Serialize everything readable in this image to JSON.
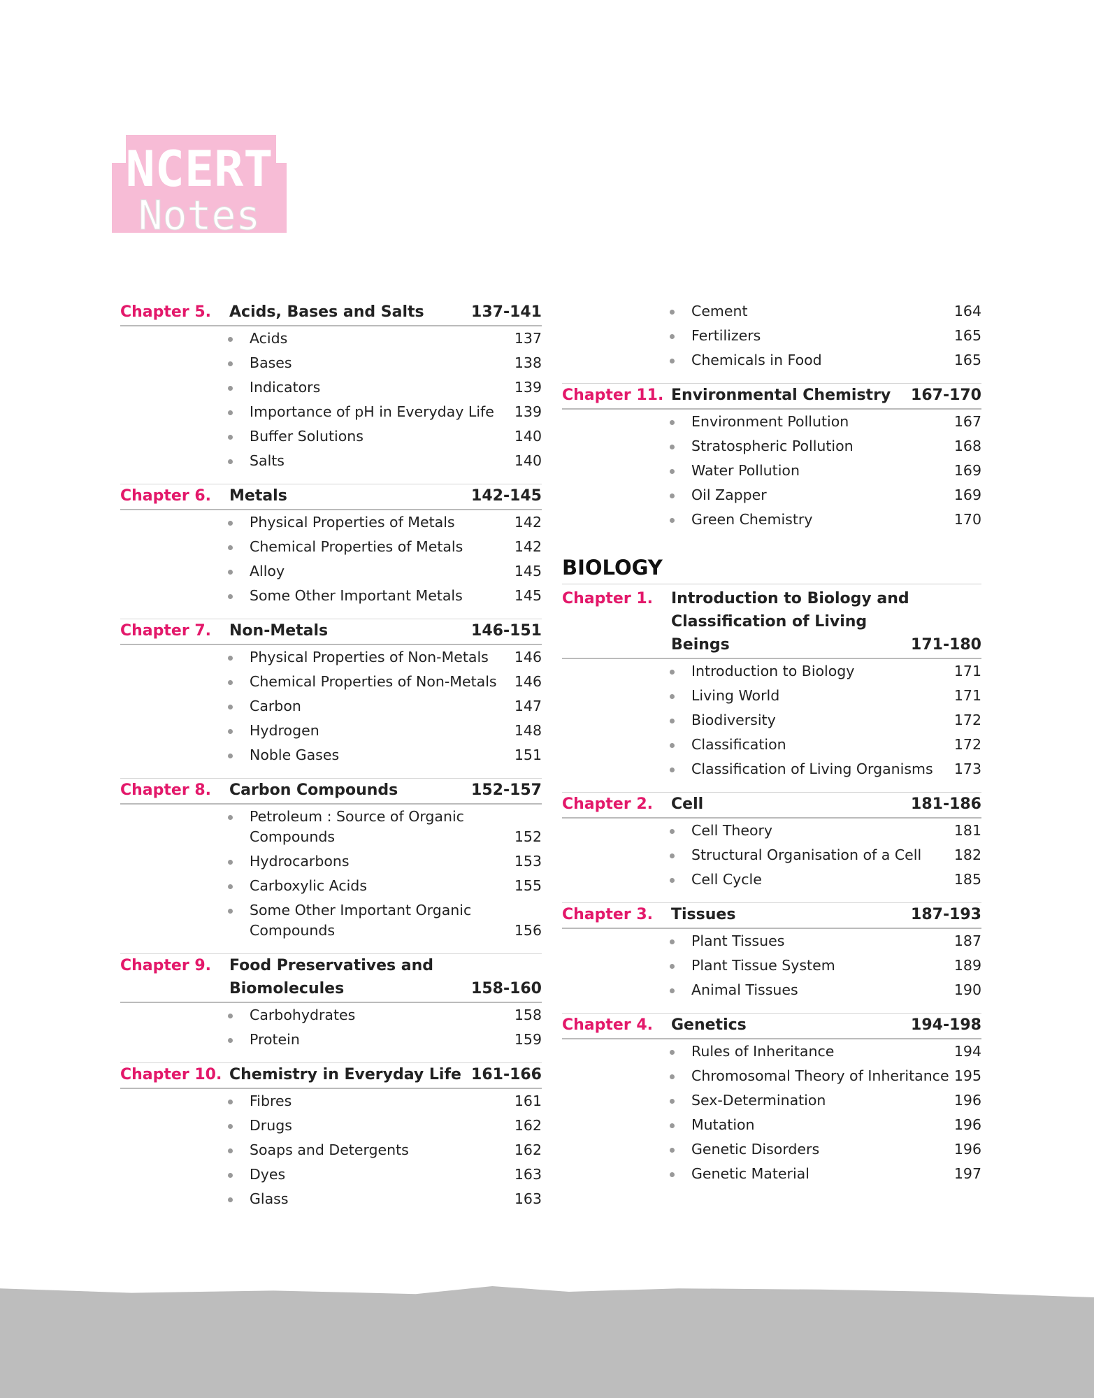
{
  "logo": {
    "line1": "NCERT",
    "line2": "Notes",
    "color": "#f7bcd6"
  },
  "colors": {
    "chapter_label": "#e3186a"
  },
  "left": {
    "chapters": [
      {
        "label": "Chapter 5.",
        "title": "Acids, Bases and Salts",
        "pages": "137-141",
        "items": [
          {
            "t": "Acids",
            "p": "137"
          },
          {
            "t": "Bases",
            "p": "138"
          },
          {
            "t": "Indicators",
            "p": "139"
          },
          {
            "t": "Importance of pH in Everyday Life",
            "p": "139"
          },
          {
            "t": "Buffer Solutions",
            "p": "140"
          },
          {
            "t": "Salts",
            "p": "140"
          }
        ]
      },
      {
        "label": "Chapter 6.",
        "title": "Metals",
        "pages": "142-145",
        "items": [
          {
            "t": "Physical Properties of Metals",
            "p": "142"
          },
          {
            "t": "Chemical Properties of Metals",
            "p": "142"
          },
          {
            "t": "Alloy",
            "p": "145"
          },
          {
            "t": "Some Other Important Metals",
            "p": "145"
          }
        ]
      },
      {
        "label": "Chapter 7.",
        "title": "Non-Metals",
        "pages": "146-151",
        "items": [
          {
            "t": "Physical Properties of Non-Metals",
            "p": "146"
          },
          {
            "t": "Chemical Properties of Non-Metals",
            "p": "146"
          },
          {
            "t": "Carbon",
            "p": "147"
          },
          {
            "t": "Hydrogen",
            "p": "148"
          },
          {
            "t": "Noble Gases",
            "p": "151"
          }
        ]
      },
      {
        "label": "Chapter 8.",
        "title": "Carbon Compounds",
        "pages": "152-157",
        "items": [
          {
            "t": "Petroleum : Source of Organic Compounds",
            "p": "152"
          },
          {
            "t": "Hydrocarbons",
            "p": "153"
          },
          {
            "t": "Carboxylic Acids",
            "p": "155"
          },
          {
            "t": "Some Other Important Organic Compounds",
            "p": "156"
          }
        ]
      },
      {
        "label": "Chapter 9.",
        "title": "Food Preservatives and Biomolecules",
        "pages": "158-160",
        "items": [
          {
            "t": "Carbohydrates",
            "p": "158"
          },
          {
            "t": "Protein",
            "p": "159"
          }
        ]
      },
      {
        "label": "Chapter 10.",
        "title": "Chemistry in Everyday Life",
        "pages": "161-166",
        "items": [
          {
            "t": "Fibres",
            "p": "161"
          },
          {
            "t": "Drugs",
            "p": "162"
          },
          {
            "t": "Soaps and Detergents",
            "p": "162"
          },
          {
            "t": "Dyes",
            "p": "163"
          },
          {
            "t": "Glass",
            "p": "163"
          }
        ]
      }
    ]
  },
  "right": {
    "continued_items": [
      {
        "t": "Cement",
        "p": "164"
      },
      {
        "t": "Fertilizers",
        "p": "165"
      },
      {
        "t": "Chemicals in Food",
        "p": "165"
      }
    ],
    "chem_chapters": [
      {
        "label": "Chapter 11.",
        "title": "Environmental Chemistry",
        "pages": "167-170",
        "items": [
          {
            "t": "Environment Pollution",
            "p": "167"
          },
          {
            "t": "Stratospheric Pollution",
            "p": "168"
          },
          {
            "t": "Water Pollution",
            "p": "169"
          },
          {
            "t": "Oil Zapper",
            "p": "169"
          },
          {
            "t": "Green Chemistry",
            "p": "170"
          }
        ]
      }
    ],
    "subject": "BIOLOGY",
    "bio_chapters": [
      {
        "label": "Chapter 1.",
        "title": "Introduction to Biology and Classification of Living Beings",
        "pages": "171-180",
        "items": [
          {
            "t": "Introduction to Biology",
            "p": "171"
          },
          {
            "t": "Living World",
            "p": "171"
          },
          {
            "t": "Biodiversity",
            "p": "172"
          },
          {
            "t": "Classification",
            "p": "172"
          },
          {
            "t": "Classification of Living Organisms",
            "p": "173"
          }
        ]
      },
      {
        "label": "Chapter 2.",
        "title": "Cell",
        "pages": "181-186",
        "items": [
          {
            "t": "Cell Theory",
            "p": "181"
          },
          {
            "t": "Structural Organisation of a Cell",
            "p": "182"
          },
          {
            "t": "Cell Cycle",
            "p": "185"
          }
        ]
      },
      {
        "label": "Chapter 3.",
        "title": "Tissues",
        "pages": "187-193",
        "items": [
          {
            "t": "Plant Tissues",
            "p": "187"
          },
          {
            "t": "Plant Tissue System",
            "p": "189"
          },
          {
            "t": "Animal Tissues",
            "p": "190"
          }
        ]
      },
      {
        "label": "Chapter 4.",
        "title": "Genetics",
        "pages": "194-198",
        "items": [
          {
            "t": "Rules of Inheritance",
            "p": "194"
          },
          {
            "t": "Chromosomal Theory of Inheritance",
            "p": "195"
          },
          {
            "t": "Sex-Determination",
            "p": "196"
          },
          {
            "t": "Mutation",
            "p": "196"
          },
          {
            "t": "Genetic Disorders",
            "p": "196"
          },
          {
            "t": "Genetic Material",
            "p": "197"
          }
        ]
      }
    ]
  }
}
